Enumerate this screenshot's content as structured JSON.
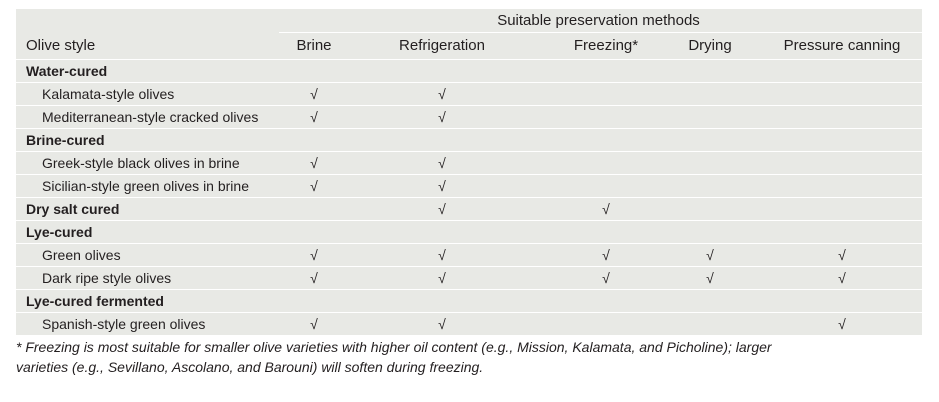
{
  "table": {
    "group_header": "Suitable preservation methods",
    "columns": {
      "style": "Olive style",
      "brine": "Brine",
      "refrigeration": "Refrigeration",
      "freezing": "Freezing*",
      "drying": "Drying",
      "pressure_canning": "Pressure canning"
    },
    "check_symbol": "√",
    "rows": [
      {
        "type": "category",
        "label": "Water-cured",
        "checks": [
          "",
          "",
          "",
          "",
          ""
        ]
      },
      {
        "type": "item",
        "label": "Kalamata-style olives",
        "checks": [
          "√",
          "√",
          "",
          "",
          ""
        ]
      },
      {
        "type": "item",
        "label": "Mediterranean-style cracked olives",
        "checks": [
          "√",
          "√",
          "",
          "",
          ""
        ]
      },
      {
        "type": "category",
        "label": "Brine-cured",
        "checks": [
          "",
          "",
          "",
          "",
          ""
        ]
      },
      {
        "type": "item",
        "label": "Greek-style black olives in brine",
        "checks": [
          "√",
          "√",
          "",
          "",
          ""
        ]
      },
      {
        "type": "item",
        "label": "Sicilian-style green olives in brine",
        "checks": [
          "√",
          "√",
          "",
          "",
          ""
        ]
      },
      {
        "type": "category",
        "label": "Dry salt cured",
        "checks": [
          "",
          "√",
          "√",
          "",
          ""
        ]
      },
      {
        "type": "category",
        "label": "Lye-cured",
        "checks": [
          "",
          "",
          "",
          "",
          ""
        ]
      },
      {
        "type": "item",
        "label": "Green olives",
        "checks": [
          "√",
          "√",
          "√",
          "√",
          "√"
        ]
      },
      {
        "type": "item",
        "label": "Dark ripe style olives",
        "checks": [
          "√",
          "√",
          "√",
          "√",
          "√"
        ]
      },
      {
        "type": "category",
        "label": "Lye-cured fermented",
        "checks": [
          "",
          "",
          "",
          "",
          ""
        ]
      },
      {
        "type": "item",
        "label": "Spanish-style green olives",
        "checks": [
          "√",
          "√",
          "",
          "",
          "√"
        ]
      }
    ]
  },
  "footnote": {
    "line1": "* Freezing is most suitable for smaller olive varieties with higher oil content (e.g., Mission, Kalamata, and Picholine); larger",
    "line2": "varieties (e.g., Sevillano, Ascolano, and Barouni) will soften during freezing."
  }
}
